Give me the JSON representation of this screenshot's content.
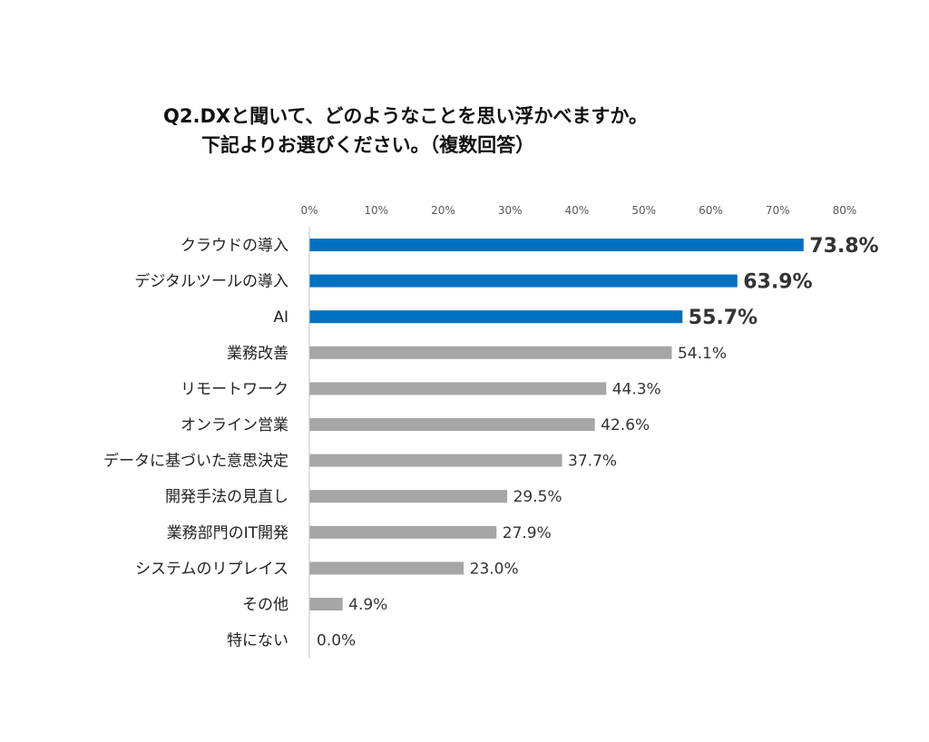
{
  "chart_data": {
    "type": "bar",
    "orientation": "horizontal",
    "title_line1": "Q2.DXと聞いて、どのようなことを思い浮かべますか。",
    "title_line2": "下記よりお選びください。（複数回答）",
    "categories": [
      "クラウドの導入",
      "デジタルツールの導入",
      "AI",
      "業務改善",
      "リモートワーク",
      "オンライン営業",
      "データに基づいた意思決定",
      "開発手法の見直し",
      "業務部門のIT開発",
      "システムのリプレイス",
      "その他",
      "特にない"
    ],
    "values": [
      73.8,
      63.9,
      55.7,
      54.1,
      44.3,
      42.6,
      37.7,
      29.5,
      27.9,
      23.0,
      4.9,
      0.0
    ],
    "value_labels": [
      "73.8%",
      "63.9%",
      "55.7%",
      "54.1%",
      "44.3%",
      "42.6%",
      "37.7%",
      "29.5%",
      "27.9%",
      "23.0%",
      "4.9%",
      "0.0%"
    ],
    "highlighted": [
      true,
      true,
      true,
      false,
      false,
      false,
      false,
      false,
      false,
      false,
      false,
      false
    ],
    "xlim": [
      0,
      80
    ],
    "x_ticks": [
      "0%",
      "10%",
      "20%",
      "30%",
      "40%",
      "50%",
      "60%",
      "70%",
      "80%"
    ],
    "x_axis_position": "top",
    "grid": false,
    "colors": {
      "highlight": "#0070C0",
      "normal": "#A6A6A6",
      "axis": "#BFBFBF",
      "tick_text": "#595959"
    }
  }
}
